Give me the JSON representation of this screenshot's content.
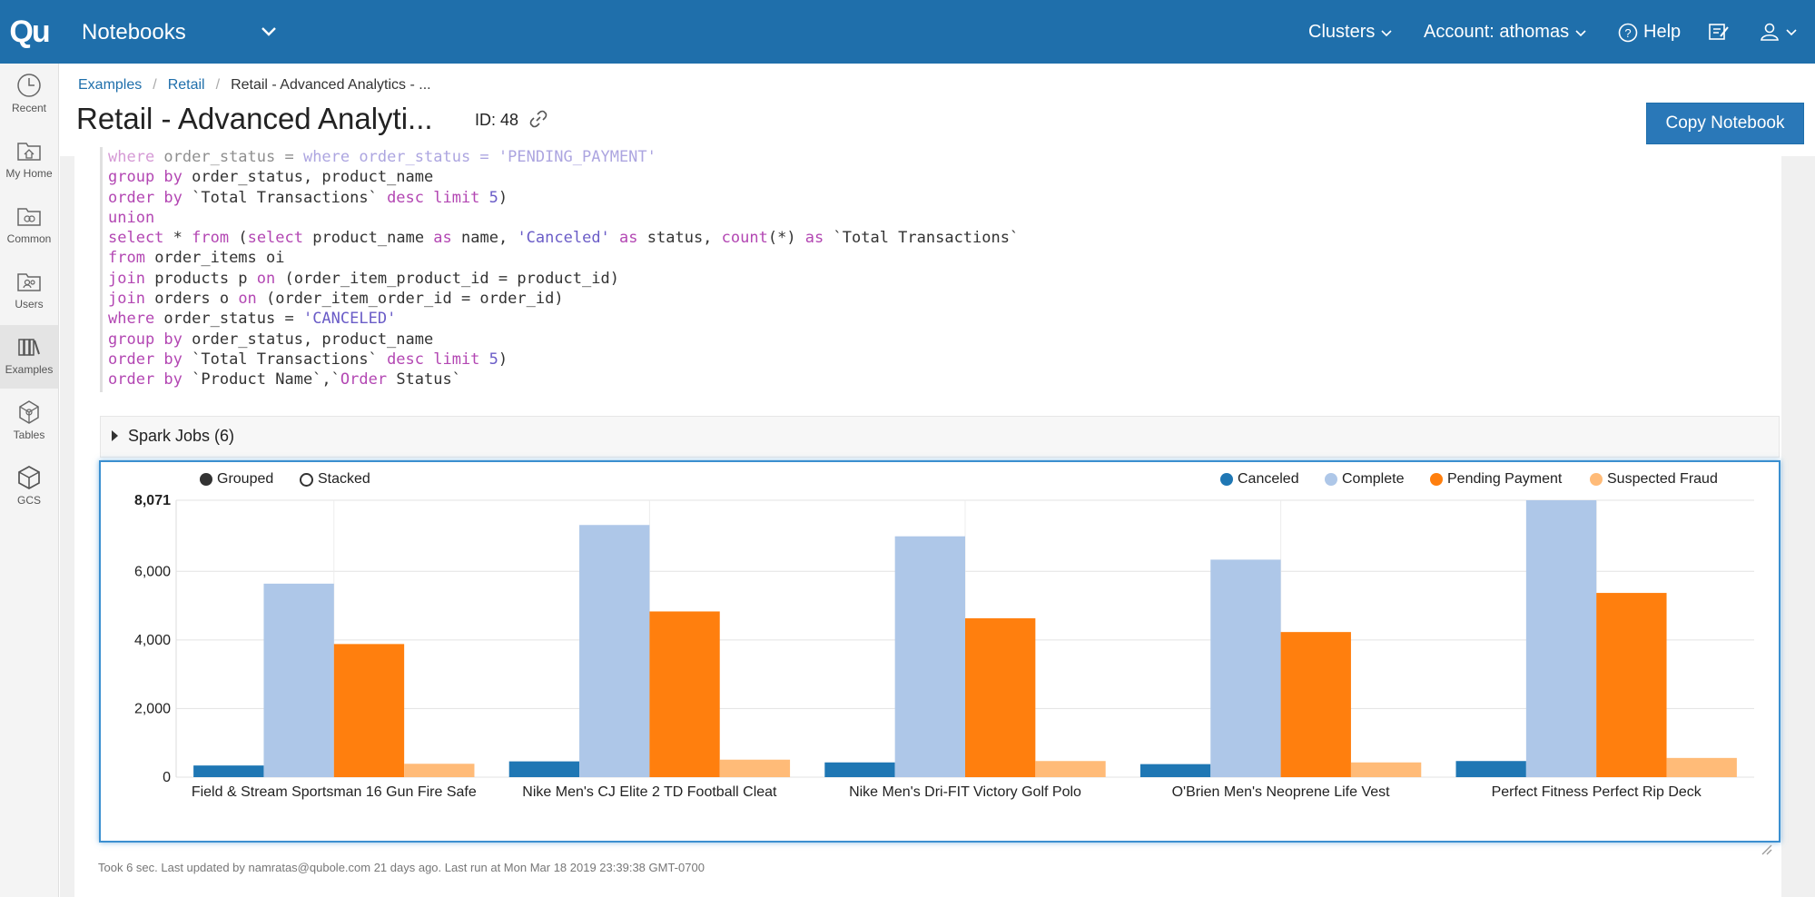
{
  "topbar": {
    "logo": "Qu",
    "app_title": "Notebooks",
    "clusters": "Clusters",
    "account": "Account: athomas",
    "help": "Help"
  },
  "sidebar": {
    "items": [
      {
        "label": "Recent",
        "icon": "clock-icon"
      },
      {
        "label": "My Home",
        "icon": "home-folder-icon"
      },
      {
        "label": "Common",
        "icon": "common-folder-icon"
      },
      {
        "label": "Users",
        "icon": "users-folder-icon"
      },
      {
        "label": "Examples",
        "icon": "books-icon"
      },
      {
        "label": "Tables",
        "icon": "tables-icon"
      },
      {
        "label": "GCS",
        "icon": "cube-icon"
      }
    ]
  },
  "breadcrumb": {
    "items": [
      "Examples",
      "Retail",
      "Retail - Advanced Analytics - ..."
    ]
  },
  "page": {
    "title": "Retail - Advanced Analyti...",
    "id": "ID: 48",
    "copy_button": "Copy Notebook"
  },
  "code_lines": [
    "where order_status = 'PENDING_PAYMENT'",
    "group by order_status, product_name",
    "order by `Total Transactions` desc limit 5)",
    "union",
    "select * from (select product_name as name, 'Canceled' as status, count(*) as `Total Transactions`",
    "from order_items oi",
    "join products p on (order_item_product_id = product_id)",
    "join orders o on (order_item_order_id = order_id)",
    "where order_status = 'CANCELED'",
    "group by order_status, product_name",
    "order by `Total Transactions` desc limit 5)",
    "order by `Product Name`,`Order Status`"
  ],
  "spark_jobs": "Spark Jobs (6)",
  "chart_controls": {
    "grouped": "Grouped",
    "stacked": "Stacked",
    "selected": "Grouped"
  },
  "chart_data": {
    "type": "bar",
    "categories": [
      "Field & Stream Sportsman 16 Gun Fire Safe",
      "Nike Men's CJ Elite 2 TD Football Cleat",
      "Nike Men's Dri-FIT Victory Golf Polo",
      "O'Brien Men's Neoprene Life Vest",
      "Perfect Fitness Perfect Rip Deck"
    ],
    "series": [
      {
        "name": "Canceled",
        "color": "#1f77b4",
        "values": [
          340,
          460,
          430,
          380,
          470
        ]
      },
      {
        "name": "Complete",
        "color": "#aec7e8",
        "values": [
          5640,
          7350,
          7020,
          6340,
          8071
        ]
      },
      {
        "name": "Pending Payment",
        "color": "#ff7f0e",
        "values": [
          3880,
          4830,
          4630,
          4230,
          5370
        ]
      },
      {
        "name": "Suspected Fraud",
        "color": "#ffbb78",
        "values": [
          390,
          510,
          470,
          430,
          560
        ]
      }
    ],
    "yticks": [
      "0",
      "2,000",
      "4,000",
      "6,000",
      "8,071"
    ],
    "ytick_values": [
      0,
      2000,
      4000,
      6000,
      8071
    ],
    "ylim": [
      0,
      8071
    ],
    "grid": true,
    "legend_position": "top-right"
  },
  "footer": "Took 6 sec. Last updated by namratas@qubole.com 21 days ago. Last run at Mon Mar 18 2019 23:39:38 GMT-0700"
}
